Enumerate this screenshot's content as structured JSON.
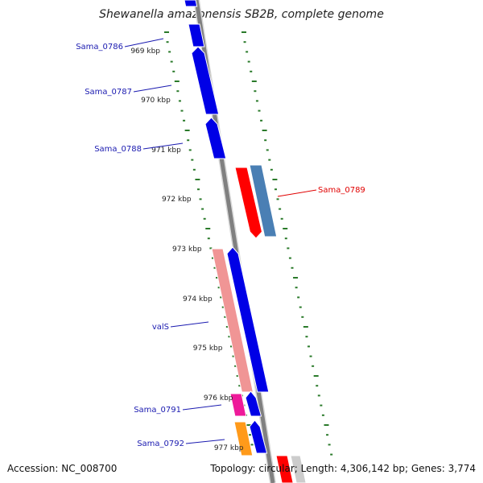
{
  "title": "Shewanella amazonensis SB2B, complete genome",
  "accession": "Accession: NC_008700",
  "topology": "Topology: circular; Length: 4,306,142 bp; Genes: 3,774",
  "colors": {
    "backbone": "#808080",
    "tick": "#2a7a2a",
    "cds": "#0000e6",
    "rna": "#ff0000",
    "misc": "#4a7fb4",
    "salmon": "#f09595",
    "magenta": "#ee1a9a",
    "orange": "#ff9a1a",
    "label_blue": "#1a1ab0",
    "label_red": "#e00000"
  },
  "kbp_labels": [
    "969 kbp",
    "970 kbp",
    "971 kbp",
    "972 kbp",
    "973 kbp",
    "974 kbp",
    "975 kbp",
    "976 kbp",
    "977 kbp"
  ],
  "genes": [
    {
      "label": "Sama_0786"
    },
    {
      "label": "Sama_0787"
    },
    {
      "label": "Sama_0788"
    },
    {
      "label": "Sama_0789"
    },
    {
      "label": "valS"
    },
    {
      "label": "Sama_0791"
    },
    {
      "label": "Sama_0792"
    }
  ]
}
